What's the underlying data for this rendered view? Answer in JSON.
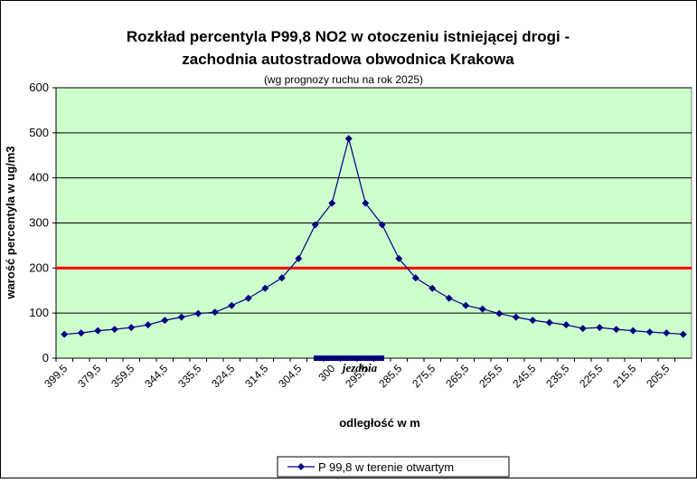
{
  "chart_data": {
    "type": "line",
    "title": "Rozkład percentyla P99,8 NO2 w otoczeniu istniejącej drogi -",
    "title_line2": "zachodnia autostradowa obwodnica Krakowa",
    "subtitle": "(wg prognozy ruchu na rok 2025)",
    "x_label": "odległość w m",
    "y_label": "warość percentyla w ug/m3",
    "annotation": "jezdnia",
    "reference_line": {
      "value": 200,
      "color": "#ff0000"
    },
    "categories": [
      "399,5",
      null,
      "379,5",
      null,
      "359,5",
      null,
      "344,5",
      null,
      "335,5",
      null,
      "324,5",
      null,
      "314,5",
      null,
      "304,5",
      null,
      "300",
      null,
      "295,5",
      null,
      "285,5",
      null,
      "275,5",
      null,
      "265,5",
      null,
      "255,5",
      null,
      "245,5",
      null,
      "235,5",
      null,
      "225,5",
      null,
      "215,5",
      null,
      "205,5",
      null
    ],
    "series": [
      {
        "name": "P 99,8 w terenie otwartym",
        "color": "#000080",
        "values": [
          53,
          56,
          61,
          64,
          68,
          74,
          84,
          91,
          99,
          102,
          117,
          133,
          155,
          178,
          221,
          296,
          344,
          487,
          344,
          296,
          221,
          178,
          155,
          133,
          117,
          109,
          99,
          91,
          84,
          79,
          74,
          66,
          68,
          64,
          61,
          58,
          56,
          53
        ]
      }
    ],
    "ylim": [
      0,
      600
    ],
    "yticks": [
      0,
      100,
      200,
      300,
      400,
      500,
      600
    ],
    "grid": true,
    "legend": "bottom"
  }
}
